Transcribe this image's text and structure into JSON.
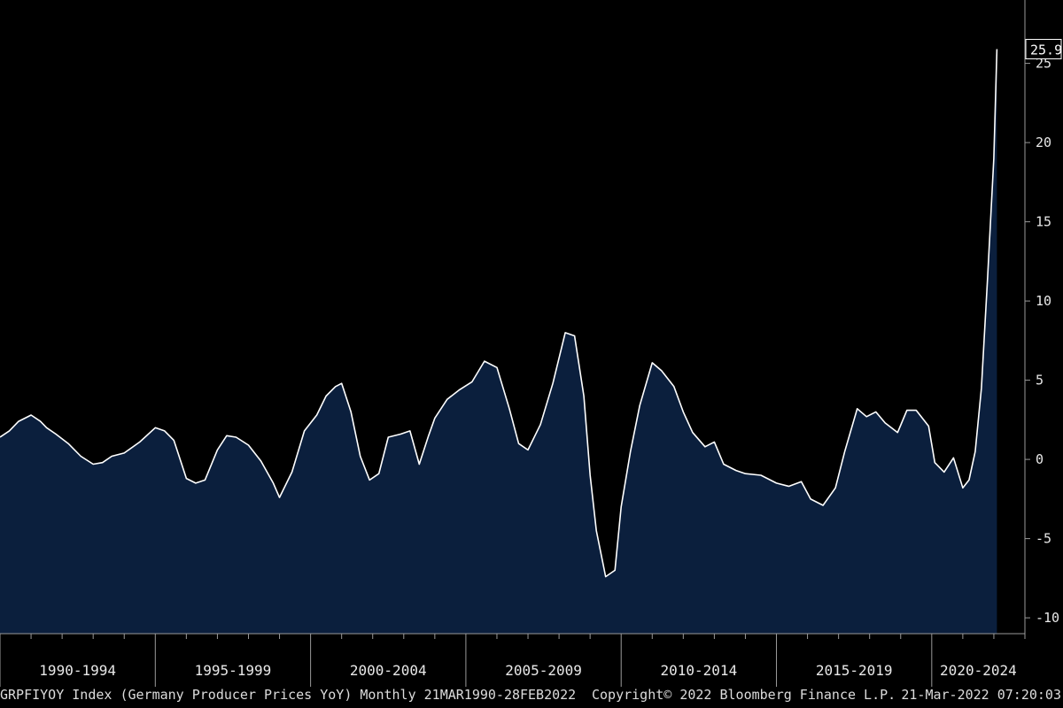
{
  "footer": {
    "series_info": "GRPFIYOY Index (Germany Producer Prices YoY)  Monthly 21MAR1990-28FEB2022",
    "copyright": "Copyright© 2022 Bloomberg Finance L.P.",
    "timestamp": "21-Mar-2022 07:20:03"
  },
  "colors": {
    "background": "#000000",
    "area_fill": "#0b1f3d",
    "line": "#ffffff",
    "axis": "#9a9a9a",
    "text": "#e8e8e8"
  },
  "chart_data": {
    "type": "area",
    "title": "",
    "xlabel": "",
    "ylabel": "",
    "ylim": [
      -11,
      29
    ],
    "xlim": [
      1990.0,
      2023.0
    ],
    "yticks": [
      25,
      20,
      15,
      10,
      5,
      0,
      -5,
      -10
    ],
    "x_period_labels": [
      "1990-1994",
      "1995-1999",
      "2000-2004",
      "2005-2009",
      "2010-2014",
      "2015-2019",
      "2020-2024"
    ],
    "x_period_starts": [
      1990,
      1995,
      2000,
      2005,
      2010,
      2015,
      2020
    ],
    "last_value_label": "25.9",
    "grid": false,
    "series": [
      {
        "values_x": [
          1990.0,
          1990.3,
          1990.6,
          1991.0,
          1991.3,
          1991.5,
          1991.8,
          1992.2,
          1992.6,
          1993.0,
          1993.3,
          1993.6,
          1994.0,
          1994.5,
          1995.0,
          1995.3,
          1995.6,
          1996.0,
          1996.3,
          1996.6,
          1997.0,
          1997.3,
          1997.6,
          1998.0,
          1998.4,
          1998.8,
          1999.0,
          1999.4,
          1999.8,
          2000.2,
          2000.5,
          2000.8,
          2001.0,
          2001.3,
          2001.6,
          2001.9,
          2002.2,
          2002.5,
          2002.9,
          2003.2,
          2003.5,
          2003.8,
          2004.0,
          2004.4,
          2004.8,
          2005.2,
          2005.6,
          2006.0,
          2006.4,
          2006.7,
          2007.0,
          2007.4,
          2007.8,
          2008.2,
          2008.5,
          2008.8,
          2009.0,
          2009.2,
          2009.5,
          2009.8,
          2010.0,
          2010.3,
          2010.6,
          2011.0,
          2011.3,
          2011.7,
          2012.0,
          2012.3,
          2012.7,
          2013.0,
          2013.3,
          2013.7,
          2014.0,
          2014.5,
          2015.0,
          2015.4,
          2015.8,
          2016.1,
          2016.5,
          2016.9,
          2017.2,
          2017.6,
          2017.9,
          2018.2,
          2018.5,
          2018.9,
          2019.2,
          2019.5,
          2019.9,
          2020.1,
          2020.4,
          2020.7,
          2021.0,
          2021.2,
          2021.4,
          2021.6,
          2021.8,
          2022.0,
          2022.1
        ],
        "values_y": [
          1.4,
          1.8,
          2.4,
          2.8,
          2.4,
          2.0,
          1.6,
          1.0,
          0.2,
          -0.3,
          -0.2,
          0.2,
          0.4,
          1.1,
          2.0,
          1.8,
          1.2,
          -1.2,
          -1.5,
          -1.3,
          0.6,
          1.5,
          1.4,
          0.9,
          -0.1,
          -1.5,
          -2.4,
          -0.8,
          1.8,
          2.8,
          4.0,
          4.6,
          4.8,
          3.0,
          0.2,
          -1.3,
          -0.9,
          1.4,
          1.6,
          1.8,
          -0.3,
          1.5,
          2.6,
          3.8,
          4.4,
          4.9,
          6.2,
          5.8,
          3.2,
          1.0,
          0.6,
          2.2,
          4.8,
          8.0,
          7.8,
          4.0,
          -1.0,
          -4.5,
          -7.4,
          -7.0,
          -3.0,
          0.5,
          3.4,
          6.1,
          5.6,
          4.6,
          3.0,
          1.7,
          0.8,
          1.1,
          -0.3,
          -0.7,
          -0.9,
          -1.0,
          -1.5,
          -1.7,
          -1.4,
          -2.5,
          -2.9,
          -1.8,
          0.5,
          3.2,
          2.7,
          3.0,
          2.3,
          1.7,
          3.1,
          3.1,
          2.1,
          -0.2,
          -0.8,
          0.1,
          -1.8,
          -1.3,
          0.5,
          4.5,
          11.5,
          19.0,
          25.9
        ]
      }
    ]
  }
}
